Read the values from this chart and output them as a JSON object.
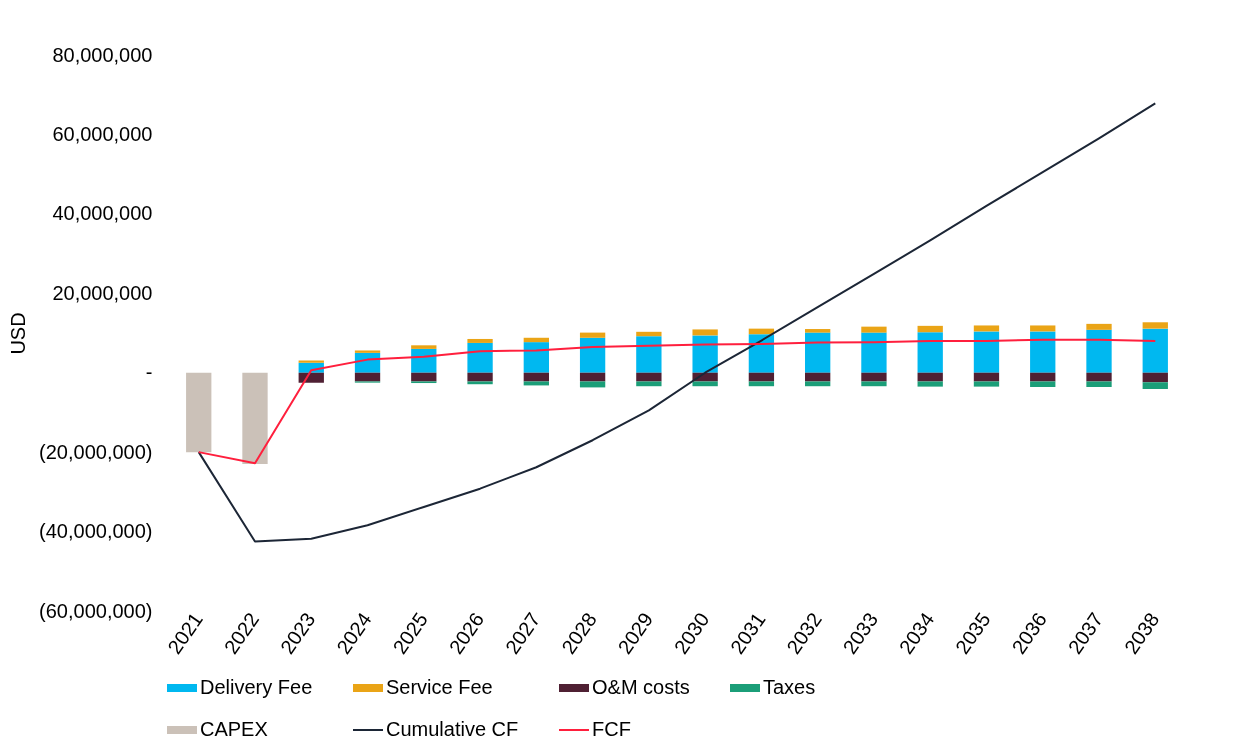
{
  "chart_data": {
    "type": "bar",
    "stacked": true,
    "ylabel": "USD",
    "legend": "bottom",
    "grid": false,
    "categories": [
      "2021",
      "2022",
      "2023",
      "2024",
      "2025",
      "2026",
      "2027",
      "2028",
      "2029",
      "2030",
      "2031",
      "2032",
      "2033",
      "2034",
      "2035",
      "2036",
      "2037",
      "2038"
    ],
    "ylim": [
      -60000000,
      80000000
    ],
    "yticks": [
      {
        "value": -60000000,
        "label": "(60,000,000)"
      },
      {
        "value": -40000000,
        "label": "(40,000,000)"
      },
      {
        "value": -20000000,
        "label": "(20,000,000)"
      },
      {
        "value": 0,
        "label": "-"
      },
      {
        "value": 20000000,
        "label": "20,000,000"
      },
      {
        "value": 40000000,
        "label": "40,000,000"
      },
      {
        "value": 60000000,
        "label": "60,000,000"
      },
      {
        "value": 80000000,
        "label": "80,000,000"
      }
    ],
    "series": [
      {
        "name": "Delivery Fee",
        "color": "#00b8f0",
        "values": [
          null,
          null,
          2500000,
          5000000,
          6000000,
          7500000,
          7700000,
          8800000,
          9200000,
          9400000,
          9700000,
          10100000,
          10100000,
          10200000,
          10400000,
          10400000,
          10800000,
          11100000
        ]
      },
      {
        "name": "Service Fee",
        "color": "#eaa416",
        "values": [
          null,
          null,
          600000,
          600000,
          900000,
          1000000,
          1100000,
          1300000,
          1100000,
          1500000,
          1400000,
          900000,
          1500000,
          1600000,
          1500000,
          1500000,
          1500000,
          1600000
        ]
      },
      {
        "name": "O&M costs",
        "color": "#4f2033",
        "values": [
          null,
          null,
          -2500000,
          -2200000,
          -2200000,
          -2200000,
          -2200000,
          -2200000,
          -2200000,
          -2200000,
          -2200000,
          -2200000,
          -2200000,
          -2200000,
          -2200000,
          -2200000,
          -2200000,
          -2400000
        ]
      },
      {
        "name": "Taxes",
        "color": "#1b9e78",
        "values": [
          null,
          null,
          null,
          -300000,
          -400000,
          -700000,
          -1000000,
          -1500000,
          -1200000,
          -1200000,
          -1200000,
          -1200000,
          -1200000,
          -1300000,
          -1300000,
          -1400000,
          -1400000,
          -1700000
        ]
      },
      {
        "name": "CAPEX",
        "color": "#cbc1b8",
        "values": [
          -20000000,
          -23000000,
          null,
          null,
          null,
          null,
          null,
          null,
          null,
          null,
          null,
          null,
          null,
          null,
          null,
          null,
          null,
          null
        ]
      },
      {
        "name": "Cumulative CF",
        "type": "line",
        "color": "#1c2636",
        "values": [
          -20000000,
          -42500000,
          -41800000,
          -38400000,
          -33800000,
          -29200000,
          -23800000,
          -17000000,
          -9500000,
          0,
          8100000,
          16500000,
          24900000,
          33300000,
          42000000,
          50500000,
          59000000,
          67800000
        ]
      },
      {
        "name": "FCF",
        "type": "line",
        "color": "#ff1f3d",
        "values": [
          -20000000,
          -22800000,
          600000,
          3300000,
          4000000,
          5400000,
          5600000,
          6500000,
          6800000,
          7100000,
          7200000,
          7600000,
          7700000,
          8000000,
          8000000,
          8300000,
          8300000,
          8000000
        ]
      }
    ]
  }
}
